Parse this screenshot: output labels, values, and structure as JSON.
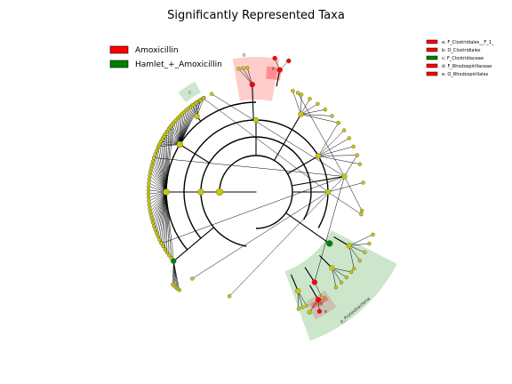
{
  "chart_data": {
    "type": "cladogram",
    "title": "Significantly Represented Taxa",
    "groups": [
      {
        "name": "Amoxicillin",
        "color": "#ff0000"
      },
      {
        "name": "Hamlet_+_Amoxicillin",
        "color": "#008000"
      }
    ],
    "node_color_default": "#c8c800",
    "biomarkers": [
      {
        "letter": "a",
        "taxon": "F_Clostridiales__F_1_",
        "group": "Amoxicillin",
        "color": "#ff0000"
      },
      {
        "letter": "b",
        "taxon": "O_Clostridiales",
        "group": "Amoxicillin",
        "color": "#ff0000"
      },
      {
        "letter": "c",
        "taxon": "F_Clostridiaceae",
        "group": "Hamlet_+_Amoxicillin",
        "color": "#008000"
      },
      {
        "letter": "d",
        "taxon": "F_Rhodospirillaceae",
        "group": "Amoxicillin",
        "color": "#ff0000"
      },
      {
        "letter": "e",
        "taxon": "O_Rhodospirillales",
        "group": "Amoxicillin",
        "color": "#ff0000"
      }
    ],
    "key_entries": [
      "a: F_Clostridiales__F_1_",
      "b: O_Clostridiales",
      "c: F_Clostridiaceae",
      "d: F_Rhodospirillaceae",
      "e: O_Rhodospirillales"
    ],
    "highlight_labels": {
      "large_green": "p_Proteobacteria"
    },
    "ring_levels": 6
  }
}
